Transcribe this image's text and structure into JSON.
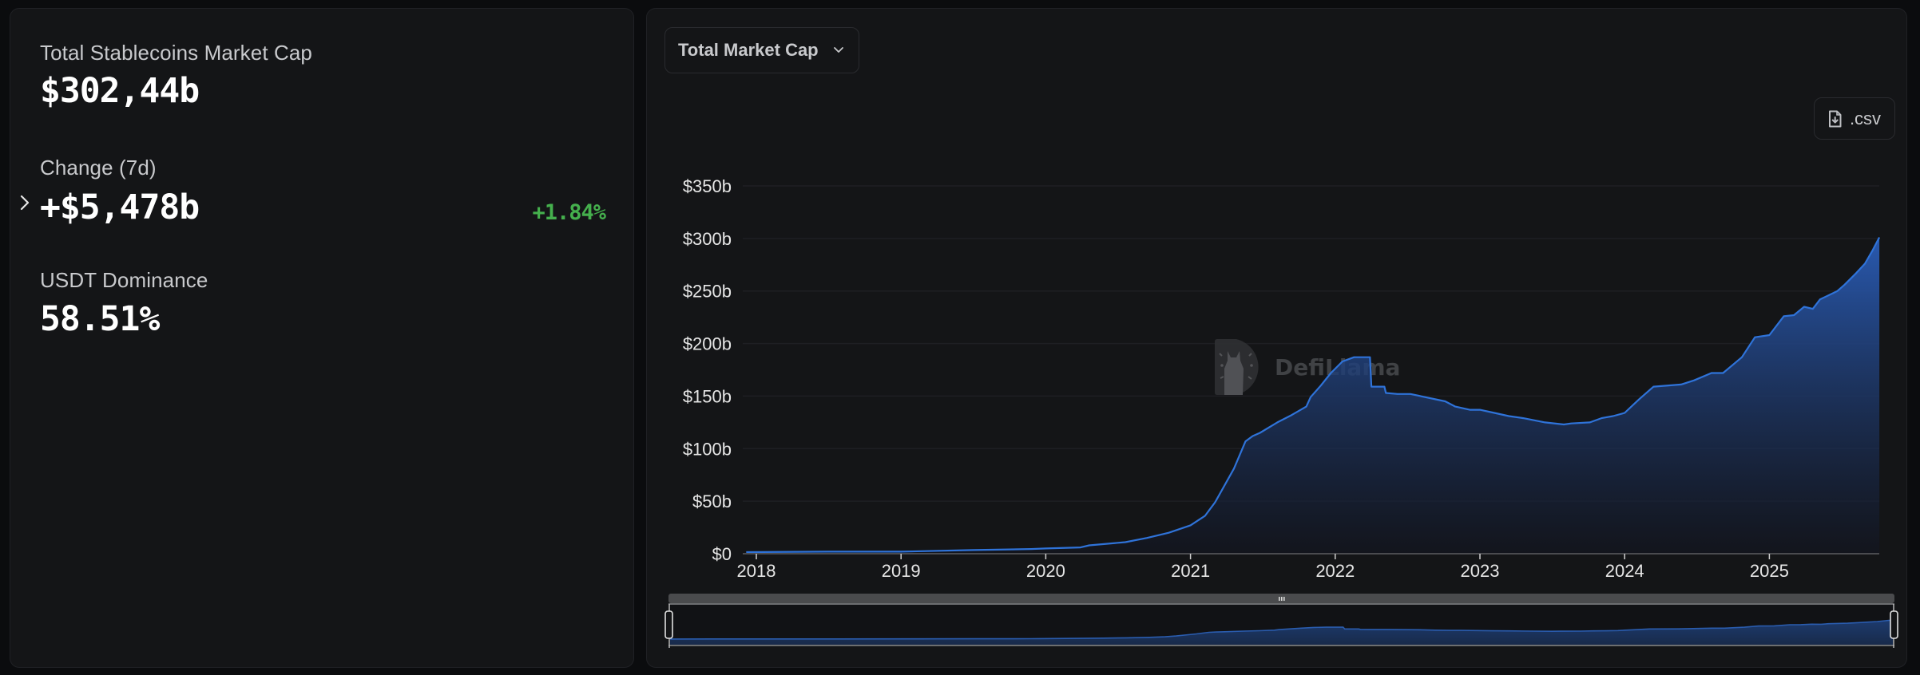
{
  "stats": {
    "total": {
      "label": "Total Stablecoins Market Cap",
      "value": "$302,44b"
    },
    "change": {
      "label": "Change (7d)",
      "value": "+$5,478b",
      "percent": "+1.84%",
      "percent_color": "#45b04d"
    },
    "dominance": {
      "label": "USDT Dominance",
      "value": "58.51%"
    }
  },
  "toolbar": {
    "metric_dropdown": {
      "selected": "Total Market Cap",
      "icon": "chevron-down-icon"
    },
    "csv_button": {
      "label": ".csv",
      "icon": "file-download-icon"
    }
  },
  "watermark": {
    "text": "DefiLlama"
  },
  "colors": {
    "line": "#2f73d9",
    "fill_top": "#2a5db8",
    "fill_bottom": "#121520",
    "grid": "#1e1f23",
    "axis": "#4a4b4f"
  },
  "chart_data": {
    "type": "area",
    "title": "Total Market Cap",
    "xlabel": "",
    "ylabel": "",
    "ylim": [
      0,
      350
    ],
    "y_ticks": [
      "$0",
      "$50b",
      "$100b",
      "$150b",
      "$200b",
      "$250b",
      "$300b",
      "$350b"
    ],
    "y_tick_values": [
      0,
      50,
      100,
      150,
      200,
      250,
      300,
      350
    ],
    "x_ticks": [
      "2018",
      "2019",
      "2020",
      "2021",
      "2022",
      "2023",
      "2024",
      "2025"
    ],
    "grid": true,
    "legend": "none",
    "unit": "USD billions",
    "series": [
      {
        "name": "Total Stablecoins Market Cap",
        "x": [
          2017.93,
          2018.5,
          2019.0,
          2019.5,
          2019.9,
          2020.0,
          2020.24,
          2020.3,
          2020.55,
          2020.7,
          2020.85,
          2021.0,
          2021.1,
          2021.17,
          2021.3,
          2021.38,
          2021.43,
          2021.48,
          2021.6,
          2021.7,
          2021.8,
          2021.83,
          2021.9,
          2021.97,
          2022.05,
          2022.13,
          2022.24,
          2022.25,
          2022.34,
          2022.35,
          2022.43,
          2022.52,
          2022.76,
          2022.83,
          2022.93,
          2023.0,
          2023.1,
          2023.2,
          2023.3,
          2023.45,
          2023.58,
          2023.63,
          2023.76,
          2023.84,
          2023.92,
          2024.0,
          2024.1,
          2024.2,
          2024.39,
          2024.48,
          2024.6,
          2024.68,
          2024.81,
          2024.9,
          2025.0,
          2025.1,
          2025.17,
          2025.24,
          2025.3,
          2025.35,
          2025.47,
          2025.52,
          2025.6,
          2025.66,
          2025.71,
          2025.76
        ],
        "values": [
          1.5,
          2,
          2,
          3.5,
          4.5,
          5,
          6,
          8,
          11,
          15,
          20,
          27,
          36,
          49,
          81,
          107,
          112,
          115,
          125,
          132,
          140,
          149,
          160,
          172,
          183,
          187,
          187,
          159,
          159,
          153,
          152,
          152,
          145,
          140,
          137,
          137,
          134,
          131,
          129,
          125,
          123,
          124,
          125,
          129,
          131,
          134,
          147,
          159,
          161,
          165,
          172,
          172,
          187,
          206,
          208,
          226,
          227,
          235,
          233,
          242,
          250,
          256,
          267,
          276,
          288,
          301
        ]
      }
    ]
  }
}
